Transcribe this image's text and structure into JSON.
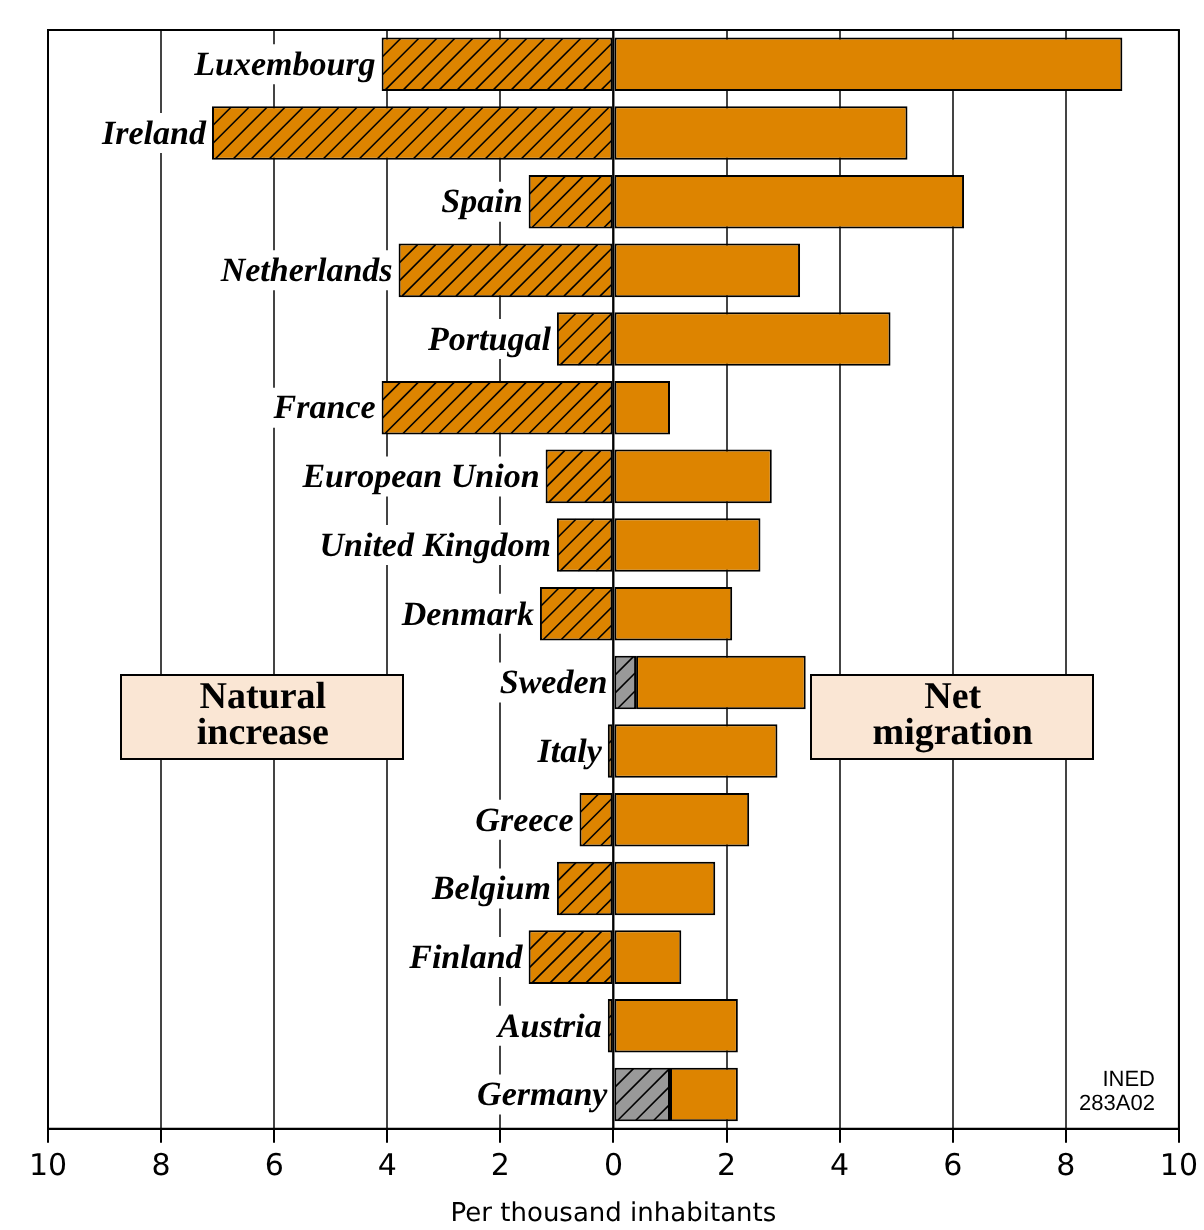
{
  "chart_data": {
    "type": "bar",
    "orientation": "horizontal",
    "stacked": true,
    "xlabel": "Per thousand inhabitants",
    "categories": [
      "Luxembourg",
      "Ireland",
      "Spain",
      "Netherlands",
      "Portugal",
      "France",
      "European Union",
      "United Kingdom",
      "Denmark",
      "Sweden",
      "Italy",
      "Greece",
      "Belgium",
      "Finland",
      "Austria",
      "Germany"
    ],
    "series": [
      {
        "colors": [
          "#dd8400",
          "#dd8400",
          "#dd8400",
          "#dd8400",
          "#dd8400",
          "#dd8400",
          "#dd8400",
          "#dd8400",
          "#dd8400",
          "#999999",
          "#dd8400",
          "#dd8400",
          "#dd8400",
          "#dd8400",
          "#dd8400",
          "#999999"
        ],
        "values": [
          -4.1,
          -7.1,
          -1.5,
          -3.8,
          -1.0,
          -4.1,
          -1.2,
          -1.0,
          -1.3,
          0.4,
          -0.1,
          -0.6,
          -1.0,
          -1.5,
          -0.1,
          1.0
        ]
      },
      {
        "color": "#dd8400",
        "values": [
          9.0,
          5.2,
          6.2,
          3.3,
          4.9,
          1.0,
          2.8,
          2.6,
          2.1,
          3.0,
          2.9,
          2.4,
          1.8,
          1.2,
          2.2,
          1.2
        ]
      }
    ],
    "xlim": [
      -10,
      10
    ],
    "xticks": [
      {
        "value": -10,
        "label": "10"
      },
      {
        "value": -8,
        "label": "8"
      },
      {
        "value": -6,
        "label": "6"
      },
      {
        "value": -4,
        "label": "4"
      },
      {
        "value": -2,
        "label": "2"
      },
      0,
      2,
      4,
      6,
      8,
      10
    ],
    "grid": "x",
    "annotations": [
      "Natural increase",
      "Net migration",
      "INED",
      "283A02"
    ]
  }
}
